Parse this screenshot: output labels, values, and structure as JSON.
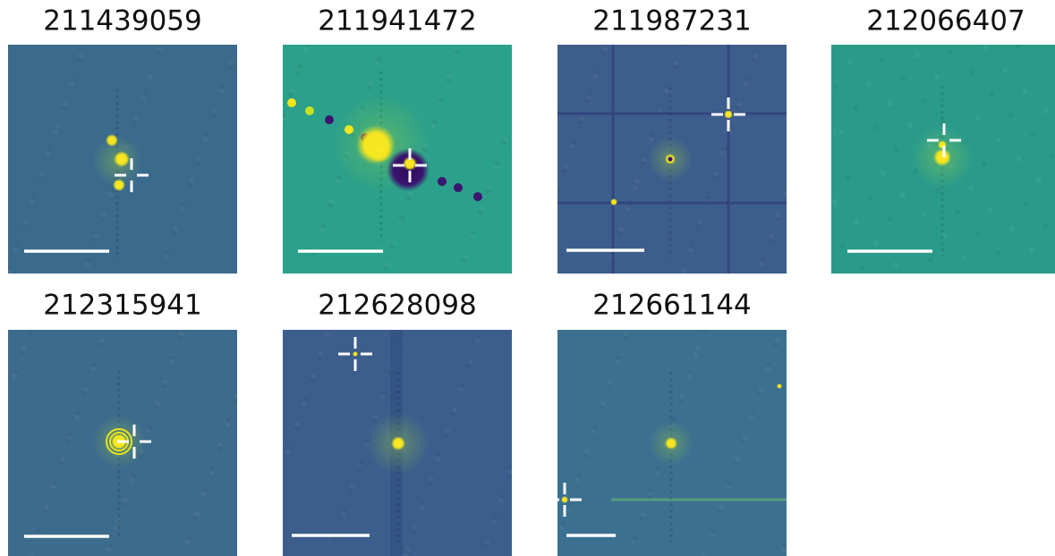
{
  "panels": [
    {
      "title": "211439059"
    },
    {
      "title": "211941472"
    },
    {
      "title": "211987231"
    },
    {
      "title": "212066407"
    },
    {
      "title": "212315941"
    },
    {
      "title": "212628098"
    },
    {
      "title": "212661144"
    }
  ]
}
